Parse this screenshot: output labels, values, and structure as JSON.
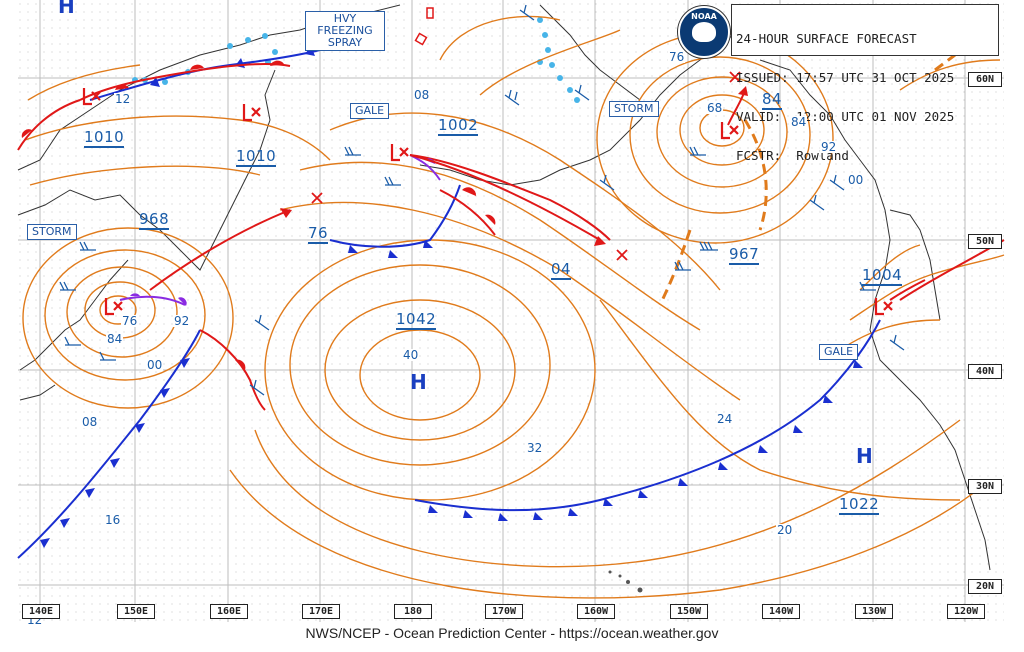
{
  "header": {
    "line1": "24-HOUR SURFACE FORECAST",
    "line2": "ISSUED: 17:57 UTC 31 OCT 2025",
    "line3": "VALID:  12:00 UTC 01 NOV 2025",
    "line4": "FCSTR:  Rowland"
  },
  "logo_text": "NOAA",
  "footer": "NWS/NCEP - Ocean Prediction Center - https://ocean.weather.gov",
  "warnings": {
    "freezing_spray": [
      "HVY",
      "FREEZING",
      "SPRAY"
    ],
    "gale_west": "GALE",
    "storm_west": "STORM",
    "storm_east": "STORM",
    "gale_east": "GALE"
  },
  "pressures": {
    "p1010a": "1010",
    "p1010b": "1010",
    "p968": "968",
    "p1002": "1002",
    "p04": "04",
    "p967": "967",
    "p84": "84",
    "p76": "76",
    "p1042": "1042",
    "p1004": "1004",
    "p1022": "1022"
  },
  "isobar_labels": {
    "i12": "12",
    "i08top": "08",
    "i76w": "76",
    "i84w": "84",
    "i92w": "92",
    "i00w": "00",
    "i08w": "08",
    "i16": "16",
    "i40": "40",
    "i32": "32",
    "i24": "24",
    "i20": "20",
    "i76n": "76",
    "i68": "68",
    "i84e": "84",
    "i92e": "92",
    "i00e": "00",
    "i12b": "12"
  },
  "centers": {
    "H1": "H",
    "H2": "H",
    "Htop": "H"
  },
  "lat_labels": [
    "60N",
    "50N",
    "40N",
    "30N",
    "20N"
  ],
  "lon_labels": [
    "140E",
    "150E",
    "160E",
    "170E",
    "180",
    "170W",
    "160W",
    "150W",
    "140W",
    "130W",
    "120W"
  ],
  "colors": {
    "isobar": "#e07b1c",
    "grid": "#b5b5b5",
    "cold_front": "#1a2fd0",
    "warm_front": "#e01818",
    "occluded": "#8a2be2",
    "ice_edge": "#47b4e8",
    "text_blue": "#1a5ca8",
    "coast": "#333333"
  }
}
